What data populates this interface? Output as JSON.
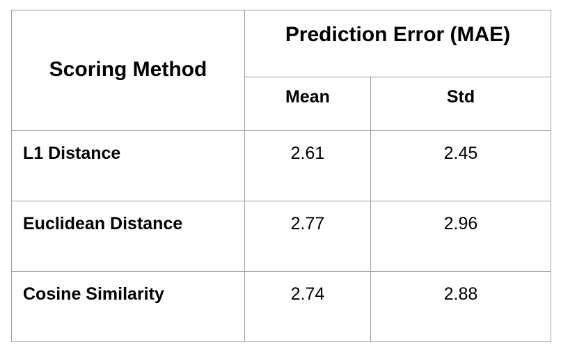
{
  "table": {
    "header": {
      "method": "Scoring Method",
      "group": "Prediction Error (MAE)",
      "mean": "Mean",
      "std": "Std"
    },
    "rows": [
      {
        "method": "L1 Distance",
        "mean": "2.61",
        "std": "2.45"
      },
      {
        "method": "Euclidean Distance",
        "mean": "2.77",
        "std": "2.96"
      },
      {
        "method": "Cosine Similarity",
        "mean": "2.74",
        "std": "2.88"
      }
    ],
    "border_color": "#9e9e9e"
  }
}
